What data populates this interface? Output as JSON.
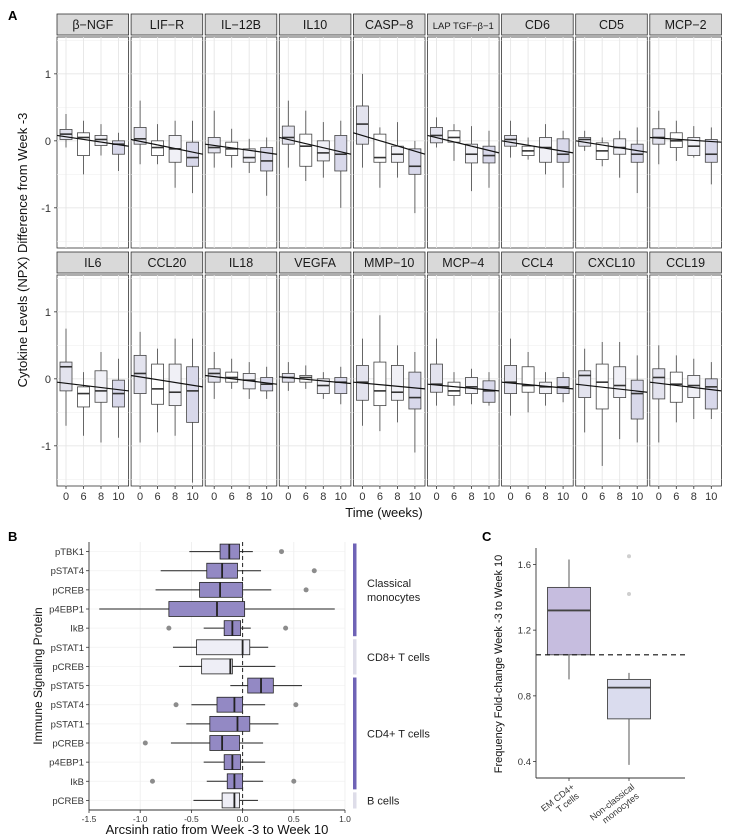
{
  "chart_data": [
    {
      "panel": "A",
      "type": "boxplot",
      "ylabel": "Cytokine Levels (NPX) Difference from Week -3",
      "xlabel": "Time (weeks)",
      "x_categories": [
        "0",
        "6",
        "8",
        "10"
      ],
      "ylim": [
        -1.6,
        1.55
      ],
      "y_ticks": [
        -1,
        0,
        1
      ],
      "fill_colors": [
        "#e3e3ee",
        "#ffffff",
        "#f0f0f6",
        "#d8d8ea"
      ],
      "facets": [
        {
          "title": "β−NGF",
          "trend": [
            0.08,
            -0.08
          ],
          "boxes": [
            {
              "min": -0.1,
              "q1": 0.02,
              "med": 0.1,
              "q3": 0.17,
              "max": 0.4
            },
            {
              "min": -0.5,
              "q1": -0.22,
              "med": 0.05,
              "q3": 0.12,
              "max": 0.3
            },
            {
              "min": -0.22,
              "q1": -0.07,
              "med": 0.02,
              "q3": 0.08,
              "max": 0.25
            },
            {
              "min": -0.45,
              "q1": -0.2,
              "med": -0.05,
              "q3": 0.0,
              "max": 0.12
            }
          ]
        },
        {
          "title": "LIF−R",
          "trend": [
            0.02,
            -0.2
          ],
          "boxes": [
            {
              "min": -0.35,
              "q1": -0.05,
              "med": 0.03,
              "q3": 0.2,
              "max": 0.6
            },
            {
              "min": -0.35,
              "q1": -0.22,
              "med": -0.1,
              "q3": 0.0,
              "max": 0.25
            },
            {
              "min": -0.7,
              "q1": -0.32,
              "med": -0.12,
              "q3": 0.08,
              "max": 0.3
            },
            {
              "min": -0.78,
              "q1": -0.38,
              "med": -0.25,
              "q3": -0.02,
              "max": 0.3
            }
          ]
        },
        {
          "title": "IL−12B",
          "trend": [
            -0.05,
            -0.2
          ],
          "boxes": [
            {
              "min": -0.4,
              "q1": -0.18,
              "med": -0.1,
              "q3": 0.05,
              "max": 0.45
            },
            {
              "min": -0.4,
              "q1": -0.22,
              "med": -0.12,
              "q3": -0.02,
              "max": 0.18
            },
            {
              "min": -0.48,
              "q1": -0.32,
              "med": -0.25,
              "q3": -0.12,
              "max": 0.03
            },
            {
              "min": -0.82,
              "q1": -0.45,
              "med": -0.3,
              "q3": -0.1,
              "max": 0.05
            }
          ]
        },
        {
          "title": "IL10",
          "trend": [
            0.05,
            -0.2
          ],
          "boxes": [
            {
              "min": -0.4,
              "q1": -0.05,
              "med": 0.05,
              "q3": 0.22,
              "max": 0.6
            },
            {
              "min": -0.6,
              "q1": -0.38,
              "med": -0.08,
              "q3": 0.1,
              "max": 0.45
            },
            {
              "min": -0.55,
              "q1": -0.3,
              "med": -0.18,
              "q3": 0.0,
              "max": 0.28
            },
            {
              "min": -1.0,
              "q1": -0.45,
              "med": -0.2,
              "q3": 0.08,
              "max": 0.3
            }
          ]
        },
        {
          "title": "CASP−8",
          "trend": [
            0.12,
            -0.2
          ],
          "boxes": [
            {
              "min": -0.4,
              "q1": -0.05,
              "med": 0.25,
              "q3": 0.52,
              "max": 1.0
            },
            {
              "min": -0.7,
              "q1": -0.32,
              "med": -0.25,
              "q3": 0.1,
              "max": 0.2
            },
            {
              "min": -0.55,
              "q1": -0.32,
              "med": -0.2,
              "q3": -0.08,
              "max": 0.28
            },
            {
              "min": -1.08,
              "q1": -0.5,
              "med": -0.38,
              "q3": -0.12,
              "max": 0.0
            }
          ]
        },
        {
          "title": "LAP TGF−β−1",
          "trend": [
            0.08,
            -0.18
          ],
          "boxes": [
            {
              "min": -0.1,
              "q1": -0.03,
              "med": 0.08,
              "q3": 0.2,
              "max": 0.35
            },
            {
              "min": -0.3,
              "q1": -0.02,
              "med": 0.05,
              "q3": 0.15,
              "max": 0.25
            },
            {
              "min": -0.75,
              "q1": -0.33,
              "med": -0.2,
              "q3": -0.05,
              "max": 0.22
            },
            {
              "min": -0.7,
              "q1": -0.33,
              "med": -0.22,
              "q3": -0.08,
              "max": 0.15
            }
          ]
        },
        {
          "title": "CD6",
          "trend": [
            0.0,
            -0.18
          ],
          "boxes": [
            {
              "min": -0.25,
              "q1": -0.08,
              "med": 0.02,
              "q3": 0.08,
              "max": 0.3
            },
            {
              "min": -0.28,
              "q1": -0.22,
              "med": -0.15,
              "q3": -0.08,
              "max": 0.05
            },
            {
              "min": -0.5,
              "q1": -0.32,
              "med": -0.1,
              "q3": 0.05,
              "max": 0.25
            },
            {
              "min": -0.7,
              "q1": -0.32,
              "med": -0.2,
              "q3": 0.03,
              "max": 0.15
            }
          ]
        },
        {
          "title": "CD5",
          "trend": [
            0.0,
            -0.17
          ],
          "boxes": [
            {
              "min": -0.15,
              "q1": -0.08,
              "med": 0.02,
              "q3": 0.05,
              "max": 0.15
            },
            {
              "min": -0.38,
              "q1": -0.28,
              "med": -0.15,
              "q3": -0.03,
              "max": 0.05
            },
            {
              "min": -0.55,
              "q1": -0.2,
              "med": -0.1,
              "q3": 0.03,
              "max": 0.15
            },
            {
              "min": -0.78,
              "q1": -0.32,
              "med": -0.2,
              "q3": -0.05,
              "max": 0.2
            }
          ]
        },
        {
          "title": "MCP−2",
          "trend": [
            0.05,
            -0.02
          ],
          "boxes": [
            {
              "min": -0.35,
              "q1": -0.05,
              "med": 0.05,
              "q3": 0.18,
              "max": 0.45
            },
            {
              "min": -0.3,
              "q1": -0.1,
              "med": 0.0,
              "q3": 0.12,
              "max": 0.3
            },
            {
              "min": -0.25,
              "q1": -0.22,
              "med": -0.08,
              "q3": 0.05,
              "max": 0.22
            },
            {
              "min": -0.65,
              "q1": -0.32,
              "med": -0.2,
              "q3": 0.02,
              "max": 0.2
            }
          ]
        },
        {
          "title": "IL6",
          "trend": [
            -0.05,
            -0.18
          ],
          "boxes": [
            {
              "min": -0.7,
              "q1": -0.18,
              "med": 0.18,
              "q3": 0.25,
              "max": 0.75
            },
            {
              "min": -0.85,
              "q1": -0.42,
              "med": -0.22,
              "q3": -0.12,
              "max": 0.1
            },
            {
              "min": -0.95,
              "q1": -0.35,
              "med": -0.18,
              "q3": 0.12,
              "max": 0.4
            },
            {
              "min": -0.88,
              "q1": -0.42,
              "med": -0.22,
              "q3": -0.02,
              "max": 0.3
            }
          ]
        },
        {
          "title": "CCL20",
          "trend": [
            0.05,
            -0.12
          ],
          "boxes": [
            {
              "min": -0.95,
              "q1": -0.22,
              "med": 0.08,
              "q3": 0.35,
              "max": 0.7
            },
            {
              "min": -0.8,
              "q1": -0.38,
              "med": -0.15,
              "q3": 0.22,
              "max": 0.45
            },
            {
              "min": -0.85,
              "q1": -0.4,
              "med": -0.2,
              "q3": 0.22,
              "max": 0.6
            },
            {
              "min": -1.55,
              "q1": -0.65,
              "med": -0.18,
              "q3": 0.18,
              "max": 0.6
            }
          ]
        },
        {
          "title": "IL18",
          "trend": [
            0.05,
            -0.08
          ],
          "boxes": [
            {
              "min": -0.3,
              "q1": -0.05,
              "med": 0.08,
              "q3": 0.15,
              "max": 0.4
            },
            {
              "min": -0.15,
              "q1": -0.05,
              "med": 0.02,
              "q3": 0.1,
              "max": 0.3
            },
            {
              "min": -0.3,
              "q1": -0.15,
              "med": -0.02,
              "q3": 0.08,
              "max": 0.25
            },
            {
              "min": -0.3,
              "q1": -0.18,
              "med": -0.08,
              "q3": 0.02,
              "max": 0.18
            }
          ]
        },
        {
          "title": "VEGFA",
          "trend": [
            0.03,
            -0.07
          ],
          "boxes": [
            {
              "min": -0.18,
              "q1": -0.05,
              "med": 0.02,
              "q3": 0.08,
              "max": 0.25
            },
            {
              "min": -0.15,
              "q1": -0.05,
              "med": 0.02,
              "q3": 0.05,
              "max": 0.2
            },
            {
              "min": -0.3,
              "q1": -0.22,
              "med": -0.1,
              "q3": 0.0,
              "max": 0.1
            },
            {
              "min": -0.38,
              "q1": -0.22,
              "med": -0.05,
              "q3": 0.02,
              "max": 0.18
            }
          ]
        },
        {
          "title": "MMP−10",
          "trend": [
            -0.05,
            -0.15
          ],
          "boxes": [
            {
              "min": -0.7,
              "q1": -0.32,
              "med": -0.05,
              "q3": 0.2,
              "max": 0.6
            },
            {
              "min": -0.78,
              "q1": -0.4,
              "med": -0.18,
              "q3": 0.25,
              "max": 0.95
            },
            {
              "min": -0.65,
              "q1": -0.32,
              "med": -0.2,
              "q3": 0.2,
              "max": 0.5
            },
            {
              "min": -1.1,
              "q1": -0.45,
              "med": -0.28,
              "q3": 0.1,
              "max": 0.4
            }
          ]
        },
        {
          "title": "MCP−4",
          "trend": [
            -0.08,
            -0.18
          ],
          "boxes": [
            {
              "min": -0.4,
              "q1": -0.2,
              "med": -0.08,
              "q3": 0.22,
              "max": 0.6
            },
            {
              "min": -0.4,
              "q1": -0.25,
              "med": -0.18,
              "q3": -0.05,
              "max": 0.1
            },
            {
              "min": -0.38,
              "q1": -0.22,
              "med": -0.12,
              "q3": 0.02,
              "max": 0.15
            },
            {
              "min": -0.4,
              "q1": -0.35,
              "med": -0.18,
              "q3": -0.03,
              "max": 0.1
            }
          ]
        },
        {
          "title": "CCL4",
          "trend": [
            -0.05,
            -0.15
          ],
          "boxes": [
            {
              "min": -0.55,
              "q1": -0.22,
              "med": -0.05,
              "q3": 0.2,
              "max": 0.6
            },
            {
              "min": -0.5,
              "q1": -0.2,
              "med": -0.1,
              "q3": 0.18,
              "max": 0.4
            },
            {
              "min": -0.4,
              "q1": -0.22,
              "med": -0.12,
              "q3": -0.05,
              "max": 0.1
            },
            {
              "min": -0.35,
              "q1": -0.22,
              "med": -0.12,
              "q3": 0.02,
              "max": 0.1
            }
          ]
        },
        {
          "title": "CXCL10",
          "trend": [
            -0.08,
            -0.2
          ],
          "boxes": [
            {
              "min": -0.8,
              "q1": -0.28,
              "med": 0.05,
              "q3": 0.12,
              "max": 0.45
            },
            {
              "min": -1.3,
              "q1": -0.45,
              "med": -0.05,
              "q3": 0.22,
              "max": 0.55
            },
            {
              "min": -0.9,
              "q1": -0.28,
              "med": -0.1,
              "q3": 0.18,
              "max": 0.55
            },
            {
              "min": -0.95,
              "q1": -0.6,
              "med": -0.22,
              "q3": -0.02,
              "max": 0.35
            }
          ]
        },
        {
          "title": "CCL19",
          "trend": [
            -0.05,
            -0.18
          ],
          "boxes": [
            {
              "min": -0.95,
              "q1": -0.3,
              "med": 0.02,
              "q3": 0.15,
              "max": 0.5
            },
            {
              "min": -0.65,
              "q1": -0.35,
              "med": -0.08,
              "q3": 0.1,
              "max": 0.35
            },
            {
              "min": -0.6,
              "q1": -0.28,
              "med": -0.1,
              "q3": 0.05,
              "max": 0.3
            },
            {
              "min": -0.6,
              "q1": -0.45,
              "med": -0.12,
              "q3": 0.0,
              "max": 0.25
            }
          ]
        }
      ]
    },
    {
      "panel": "B",
      "type": "horizontal-boxplot",
      "xlabel": "Arcsinh ratio from Week -3 to Week 10",
      "ylabel": "Immune Signaling Protein",
      "xlim": [
        -1.5,
        1.0
      ],
      "x_ticks": [
        "-1.5",
        "-1.0",
        "-0.5",
        "0.0",
        "0.5",
        "1.0"
      ],
      "significant_color": "#9389c4",
      "nonsignificant_color": "#eeeef6",
      "rows": [
        {
          "label": "pTBK1",
          "min": -0.52,
          "q1": -0.22,
          "med": -0.13,
          "q3": -0.03,
          "max": 0.1,
          "sig": true,
          "outliers": [
            0.38
          ]
        },
        {
          "label": "pSTAT4",
          "min": -0.8,
          "q1": -0.35,
          "med": -0.2,
          "q3": -0.05,
          "max": 0.18,
          "sig": true,
          "outliers": [
            0.7
          ]
        },
        {
          "label": "pCREB",
          "min": -0.85,
          "q1": -0.42,
          "med": -0.22,
          "q3": 0.0,
          "max": 0.28,
          "sig": true,
          "outliers": [
            0.62
          ]
        },
        {
          "label": "p4EBP1",
          "min": -1.4,
          "q1": -0.72,
          "med": -0.25,
          "q3": 0.02,
          "max": 0.9,
          "sig": true,
          "outliers": []
        },
        {
          "label": "IkB",
          "min": -0.38,
          "q1": -0.18,
          "med": -0.1,
          "q3": -0.02,
          "max": 0.08,
          "sig": true,
          "outliers": [
            -0.72,
            0.42
          ]
        },
        {
          "label": "pSTAT1",
          "min": -0.68,
          "q1": -0.45,
          "med": 0.0,
          "q3": 0.07,
          "max": 0.25,
          "sig": false,
          "outliers": []
        },
        {
          "label": "pCREB",
          "min": -0.62,
          "q1": -0.4,
          "med": -0.12,
          "q3": -0.1,
          "max": 0.32,
          "sig": false,
          "outliers": []
        },
        {
          "label": "pSTAT5",
          "min": -0.12,
          "q1": 0.05,
          "med": 0.18,
          "q3": 0.3,
          "max": 0.58,
          "sig": true,
          "outliers": []
        },
        {
          "label": "pSTAT4",
          "min": -0.5,
          "q1": -0.25,
          "med": -0.08,
          "q3": 0.0,
          "max": 0.22,
          "sig": true,
          "outliers": [
            -0.65,
            0.52
          ]
        },
        {
          "label": "pSTAT1",
          "min": -0.55,
          "q1": -0.32,
          "med": -0.05,
          "q3": 0.07,
          "max": 0.35,
          "sig": true,
          "outliers": []
        },
        {
          "label": "pCREB",
          "min": -0.7,
          "q1": -0.32,
          "med": -0.2,
          "q3": -0.03,
          "max": 0.2,
          "sig": true,
          "outliers": [
            -0.95
          ]
        },
        {
          "label": "p4EBP1",
          "min": -0.38,
          "q1": -0.18,
          "med": -0.1,
          "q3": -0.02,
          "max": 0.22,
          "sig": true,
          "outliers": []
        },
        {
          "label": "IkB",
          "min": -0.35,
          "q1": -0.15,
          "med": -0.08,
          "q3": 0.0,
          "max": 0.2,
          "sig": true,
          "outliers": [
            -0.88,
            0.5
          ]
        },
        {
          "label": "pCREB",
          "min": -0.48,
          "q1": -0.2,
          "med": -0.08,
          "q3": -0.03,
          "max": 0.15,
          "sig": false,
          "outliers": []
        }
      ],
      "groups": [
        {
          "label": "Classical\nmonocytes",
          "from": 0,
          "to": 4,
          "sig": true
        },
        {
          "label": "CD8+ T cells",
          "from": 5,
          "to": 6,
          "sig": false
        },
        {
          "label": "CD4+ T cells",
          "from": 7,
          "to": 12,
          "sig": true
        },
        {
          "label": "B cells",
          "from": 13,
          "to": 13,
          "sig": false
        }
      ]
    },
    {
      "panel": "C",
      "type": "boxplot",
      "ylabel": "Frequency Fold-change Week -3 to Week 10",
      "ylim": [
        0.3,
        1.7
      ],
      "y_ticks": [
        "0.4",
        "0.8",
        "1.2",
        "1.6"
      ],
      "reference_line": 1.05,
      "categories": [
        "EM CD4+\nT cells",
        "Non-classical\nmonocytes"
      ],
      "boxes": [
        {
          "min": 0.9,
          "q1": 1.05,
          "med": 1.32,
          "q3": 1.46,
          "max": 1.63,
          "color": "#c6bddf",
          "outliers": []
        },
        {
          "min": 0.38,
          "q1": 0.66,
          "med": 0.85,
          "q3": 0.9,
          "max": 0.94,
          "color": "#dadcee",
          "outliers": [
            1.42,
            1.65
          ]
        }
      ]
    }
  ]
}
